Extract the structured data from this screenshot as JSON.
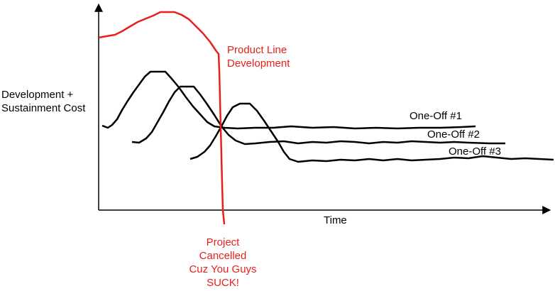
{
  "colors": {
    "red": "#e8201c",
    "black": "#000000"
  },
  "y_axis_label": [
    "Development +",
    "Sustainment Cost"
  ],
  "x_axis_label": "Time",
  "product_line_label": [
    "Product Line",
    "Development"
  ],
  "cancel_label": [
    "Project",
    "Cancelled",
    "Cuz You Guys",
    "SUCK!"
  ],
  "one_offs": [
    {
      "label": "One-Off #1"
    },
    {
      "label": "One-Off #2"
    },
    {
      "label": "One-Off #3"
    }
  ]
}
